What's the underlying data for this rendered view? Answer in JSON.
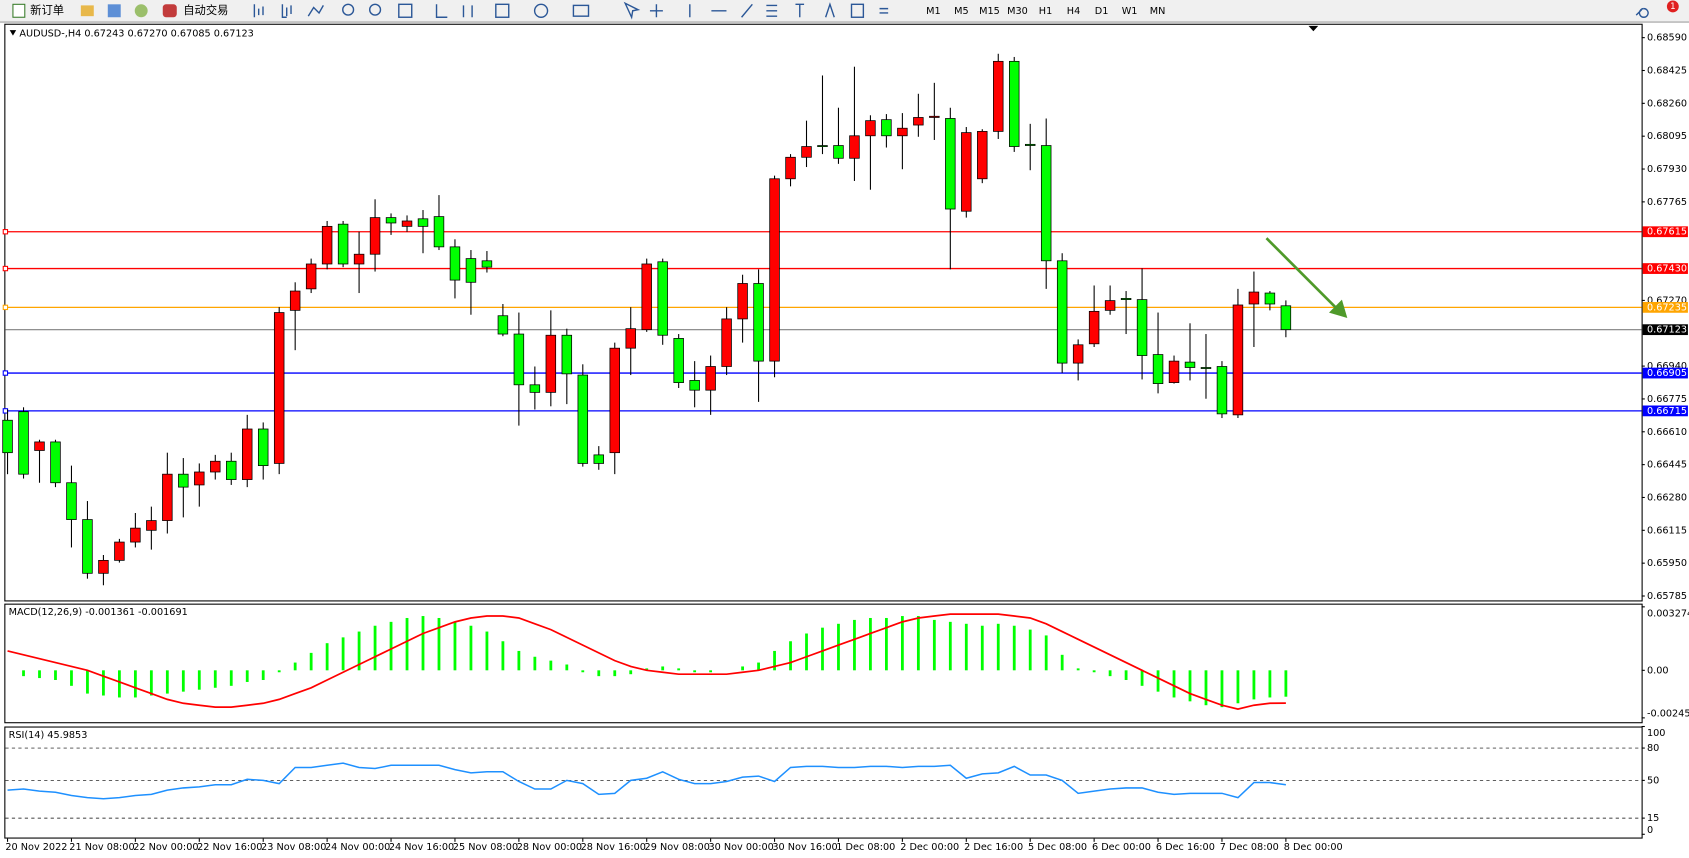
{
  "toolbar": {
    "new_order": "新订单",
    "auto_trade": "自动交易",
    "timeframes": [
      "M1",
      "M5",
      "M15",
      "M30",
      "H1",
      "H4",
      "D1",
      "W1",
      "MN"
    ],
    "badge": "1"
  },
  "chart_data": [
    {
      "type": "candlestick",
      "title": "AUDUSD-,H4 0.67243 0.67270 0.67085 0.67123",
      "categories": [
        "20 Nov 2022",
        null,
        null,
        null,
        "21 Nov 08:00",
        null,
        null,
        null,
        "22 Nov 00:00",
        null,
        null,
        null,
        "22 Nov 16:00",
        null,
        null,
        null,
        "23 Nov 08:00",
        null,
        null,
        null,
        "24 Nov 00:00",
        null,
        null,
        null,
        "24 Nov 16:00",
        null,
        null,
        null,
        "25 Nov 08:00",
        null,
        null,
        null,
        "28 Nov 00:00",
        null,
        null,
        null,
        "28 Nov 16:00",
        null,
        null,
        null,
        "29 Nov 08:00",
        null,
        null,
        null,
        "30 Nov 00:00",
        null,
        null,
        null,
        "30 Nov 16:00",
        null,
        null,
        null,
        "1 Dec 08:00",
        null,
        null,
        null,
        "2 Dec 00:00",
        null,
        null,
        null,
        "2 Dec 16:00",
        null,
        null,
        null,
        "5 Dec 08:00",
        null,
        null,
        null,
        "6 Dec 00:00",
        null,
        null,
        null,
        "6 Dec 16:00",
        null,
        null,
        null,
        "7 Dec 08:00",
        null,
        null,
        null,
        "8 Dec 00:00"
      ],
      "open": [
        0.66668,
        0.66711,
        0.66516,
        0.66559,
        0.66354,
        0.66169,
        0.65899,
        0.65964,
        0.66056,
        0.66115,
        0.66164,
        0.66397,
        0.66343,
        0.66408,
        0.66462,
        0.6637,
        0.66624,
        0.66451,
        0.6722,
        0.67328,
        0.67453,
        0.67653,
        0.67453,
        0.67502,
        0.67686,
        0.67642,
        0.6768,
        0.67691,
        0.67539,
        0.6748,
        0.67469,
        0.67193,
        0.67101,
        0.66846,
        0.66808,
        0.67095,
        0.66895,
        0.66494,
        0.66505,
        0.6703,
        0.67123,
        0.67464,
        0.67079,
        0.66868,
        0.66819,
        0.66938,
        0.67177,
        0.67355,
        0.66965,
        0.67881,
        0.67989,
        0.68048,
        0.68048,
        0.67984,
        0.68097,
        0.68178,
        0.68097,
        0.68151,
        0.68189,
        0.68184,
        0.67718,
        0.67881,
        0.68119,
        0.68471,
        0.68054,
        0.68048,
        0.67469,
        0.66955,
        0.67052,
        0.6722,
        0.6728,
        0.67274,
        0.66998,
        0.66857,
        0.6696,
        0.66933,
        0.66938,
        0.66695,
        0.67252,
        0.67307,
        0.67243
      ],
      "high": [
        0.66722,
        0.66733,
        0.6657,
        0.6657,
        0.6644,
        0.66262,
        0.65991,
        0.66072,
        0.66202,
        0.66234,
        0.66505,
        0.66478,
        0.66451,
        0.66494,
        0.66505,
        0.66695,
        0.66657,
        0.67236,
        0.67361,
        0.6748,
        0.67669,
        0.67669,
        0.67615,
        0.67778,
        0.67707,
        0.67697,
        0.67724,
        0.67799,
        0.67577,
        0.67523,
        0.67518,
        0.67252,
        0.67209,
        0.66938,
        0.6722,
        0.67128,
        0.66949,
        0.66538,
        0.67058,
        0.67236,
        0.6748,
        0.6748,
        0.67101,
        0.66965,
        0.66993,
        0.67236,
        0.67399,
        0.67426,
        0.67897,
        0.68005,
        0.68173,
        0.684,
        0.68238,
        0.68444,
        0.682,
        0.68206,
        0.68211,
        0.68308,
        0.68363,
        0.68238,
        0.68141,
        0.6813,
        0.68509,
        0.68493,
        0.68157,
        0.68184,
        0.67507,
        0.67074,
        0.67345,
        0.67345,
        0.67317,
        0.67431,
        0.67209,
        0.66993,
        0.67155,
        0.67101,
        0.66965,
        0.67328,
        0.67415,
        0.67317,
        0.6727
      ],
      "low": [
        0.66397,
        0.66375,
        0.66354,
        0.66332,
        0.66029,
        0.65872,
        0.65839,
        0.65953,
        0.66029,
        0.66018,
        0.66099,
        0.6618,
        0.66234,
        0.6637,
        0.66343,
        0.66332,
        0.6637,
        0.66397,
        0.6702,
        0.67307,
        0.67426,
        0.67437,
        0.67307,
        0.67415,
        0.67599,
        0.67615,
        0.67507,
        0.67523,
        0.6728,
        0.67198,
        0.6741,
        0.6709,
        0.66641,
        0.66722,
        0.66738,
        0.66749,
        0.66435,
        0.66419,
        0.66397,
        0.66895,
        0.67112,
        0.67047,
        0.6683,
        0.66733,
        0.66695,
        0.66895,
        0.67058,
        0.6676,
        0.66884,
        0.67843,
        0.6794,
        0.68005,
        0.67956,
        0.6787,
        0.67826,
        0.68038,
        0.67929,
        0.68092,
        0.68076,
        0.67426,
        0.67686,
        0.67859,
        0.68081,
        0.68016,
        0.67924,
        0.67328,
        0.66906,
        0.66868,
        0.67036,
        0.67198,
        0.67101,
        0.66873,
        0.66803,
        0.66852,
        0.66868,
        0.66776,
        0.66679,
        0.66679,
        0.67036,
        0.6722,
        0.67085
      ],
      "close": [
        0.66505,
        0.66397,
        0.66559,
        0.66354,
        0.66169,
        0.65899,
        0.65964,
        0.66056,
        0.66126,
        0.66164,
        0.66397,
        0.66332,
        0.66408,
        0.66462,
        0.6637,
        0.66624,
        0.6644,
        0.67209,
        0.67317,
        0.67453,
        0.67642,
        0.67453,
        0.67502,
        0.67686,
        0.67659,
        0.67669,
        0.67642,
        0.67539,
        0.67372,
        0.67361,
        0.67437,
        0.67101,
        0.66846,
        0.66808,
        0.67095,
        0.66901,
        0.66451,
        0.66451,
        0.6703,
        0.67128,
        0.67453,
        0.67095,
        0.66857,
        0.66819,
        0.66938,
        0.67177,
        0.67355,
        0.66965,
        0.67881,
        0.67989,
        0.68043,
        0.68043,
        0.67984,
        0.68097,
        0.68173,
        0.68097,
        0.68135,
        0.68189,
        0.68195,
        0.67729,
        0.68113,
        0.68119,
        0.68471,
        0.68043,
        0.68048,
        0.67469,
        0.66955,
        0.67047,
        0.67215,
        0.67269,
        0.67274,
        0.66993,
        0.66852,
        0.66965,
        0.66933,
        0.66928,
        0.667,
        0.67247,
        0.67312,
        0.67252,
        0.67123
      ],
      "up_color": "#ff0000",
      "down_color": "#00ff00",
      "ylim": [
        0.65763,
        0.6866
      ],
      "yticks": [
        {
          "value": 0.6859,
          "label": "0.68590"
        },
        0.68425,
        {
          "value": 0.6826,
          "label": "0.68260"
        },
        0.68095,
        {
          "value": 0.6793,
          "label": "0.67930"
        },
        0.67765,
        {
          "value": 0.6727,
          "label": "0.67270"
        },
        {
          "value": 0.6694,
          "label": "0.66940"
        },
        0.66775,
        {
          "value": 0.6661,
          "label": "0.66610"
        },
        0.66445,
        {
          "value": 0.6628,
          "label": "0.66280"
        },
        0.66115,
        {
          "value": 0.6595,
          "label": "0.65950"
        },
        0.65785
      ],
      "levels": {
        "values": [
          0.67615,
          0.6743,
          0.67235,
          0.66905,
          0.66715
        ],
        "value_labels": [
          "0.67615",
          "0.67430",
          "0.67235",
          "0.66905",
          "0.66715"
        ],
        "colors": [
          "#ff0000",
          "#ff0000",
          "#ffa500",
          "#0000ff",
          "#0000ff"
        ]
      }
    },
    {
      "type": "macd",
      "title": "MACD(12,26,9) -0.001361 -0.001691",
      "histogram": {
        "color": "#00ff00",
        "values": [
          null,
          -0.0003,
          -0.0004,
          -0.0005,
          -0.0008,
          -0.0012,
          -0.0013,
          -0.0014,
          -0.0014,
          -0.0013,
          -0.0012,
          -0.0011,
          -0.001,
          -0.0009,
          -0.0008,
          -0.0006,
          -0.0005,
          -0.0001,
          0.0004,
          0.0009,
          0.0014,
          0.0017,
          0.002,
          0.0023,
          0.0025,
          0.0027,
          0.0028,
          0.0027,
          0.0025,
          0.0023,
          0.002,
          0.0015,
          0.001,
          0.0007,
          0.0005,
          0.0003,
          -0.0001,
          -0.0003,
          -0.0003,
          -0.0002,
          0.0001,
          0.0002,
          0.0001,
          -0.0001,
          -0.0001,
          0,
          0.0002,
          0.0004,
          0.001,
          0.0015,
          0.0019,
          0.0022,
          0.0024,
          0.0026,
          0.0027,
          0.0027,
          0.0028,
          0.0028,
          0.0026,
          0.0025,
          0.0024,
          0.0023,
          0.0024,
          0.0023,
          0.0021,
          0.0018,
          0.0008,
          0.0001,
          -0.0001,
          -0.0003,
          -0.0005,
          -0.0008,
          -0.0011,
          -0.0014,
          -0.0016,
          -0.0018,
          -0.0019,
          -0.0017,
          -0.0015,
          -0.0014,
          -0.001361
        ]
      },
      "signal": {
        "color": "#ff0000",
        "values": [
          0.001,
          0.0008,
          0.0006,
          0.0004,
          0.0002,
          0,
          -0.0003,
          -0.0006,
          -0.0009,
          -0.0012,
          -0.0015,
          -0.0017,
          -0.0018,
          -0.0019,
          -0.0019,
          -0.0018,
          -0.0017,
          -0.0015,
          -0.0012,
          -0.0009,
          -0.0005,
          -0.0001,
          0.0003,
          0.0007,
          0.0011,
          0.0015,
          0.0019,
          0.0022,
          0.0025,
          0.0027,
          0.0028,
          0.0028,
          0.0027,
          0.0024,
          0.0021,
          0.0017,
          0.0013,
          0.0009,
          0.0005,
          0.0002,
          0,
          -0.0001,
          -0.0002,
          -0.0002,
          -0.0002,
          -0.0002,
          -0.0001,
          0,
          0.0002,
          0.0004,
          0.0007,
          0.001,
          0.0013,
          0.0016,
          0.0019,
          0.0022,
          0.0025,
          0.0027,
          0.0028,
          0.0029,
          0.0029,
          0.0029,
          0.0029,
          0.0028,
          0.0027,
          0.0024,
          0.002,
          0.0016,
          0.0012,
          0.0008,
          0.0004,
          0,
          -0.0004,
          -0.0008,
          -0.0012,
          -0.0015,
          -0.0018,
          -0.002,
          -0.0018,
          -0.0017,
          -0.001691
        ]
      },
      "ylim": [
        -0.002453,
        0.003274
      ],
      "yticks": [
        0.003274,
        {
          "value": 0,
          "label": "0.00"
        },
        -0.002453
      ]
    },
    {
      "type": "line",
      "title": "RSI(14) 45.9853",
      "color": "#1e90ff",
      "values": [
        41,
        42,
        40,
        39,
        36,
        34,
        33,
        34,
        36,
        37,
        41,
        43,
        44,
        46,
        46,
        51,
        50,
        47,
        62,
        62,
        64,
        66,
        62,
        61,
        64,
        64,
        64,
        64,
        60,
        57,
        58,
        58,
        49,
        42,
        42,
        50,
        47,
        37,
        38,
        50,
        52,
        58,
        51,
        47,
        47,
        49,
        53,
        54,
        49,
        62,
        63,
        63,
        62,
        62,
        63,
        63,
        62,
        63,
        63,
        64,
        52,
        56,
        57,
        63,
        55,
        55,
        50,
        38,
        40,
        42,
        43,
        43,
        39,
        37,
        38,
        38,
        38,
        34,
        48,
        48,
        45.9853
      ],
      "ylim": [
        0,
        100
      ],
      "yticks": [
        100,
        80,
        50,
        15,
        0
      ],
      "grid": true
    }
  ]
}
